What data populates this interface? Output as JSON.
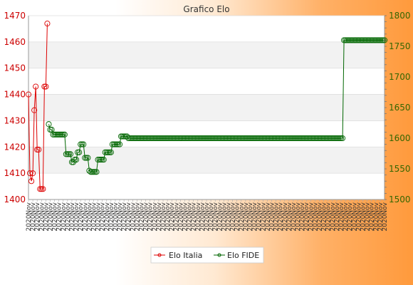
{
  "chart_data": {
    "type": "line",
    "title": "Grafico Elo",
    "colors": {
      "italia": "#dd0000",
      "fide": "#006600",
      "leftAxis": "#cc0000",
      "rightAxis": "#336600"
    },
    "y_left": {
      "lim": [
        1400,
        1470
      ],
      "ticks": [
        1400,
        1410,
        1420,
        1430,
        1440,
        1450,
        1460,
        1470
      ]
    },
    "y_right": {
      "lim": [
        1500,
        1800
      ],
      "ticks": [
        1500,
        1550,
        1600,
        1650,
        1700,
        1750,
        1800
      ]
    },
    "x_tick_text": "2020Nov",
    "series": [
      {
        "name": "Elo Italia",
        "axis": "left",
        "points": [
          [
            0,
            1440
          ],
          [
            1,
            1410
          ],
          [
            2,
            1407
          ],
          [
            3,
            1410
          ],
          [
            4,
            1434
          ],
          [
            5,
            1443
          ],
          [
            6,
            1419
          ],
          [
            7,
            1419
          ],
          [
            8,
            1404
          ],
          [
            9,
            1404
          ],
          [
            10,
            1404
          ],
          [
            11,
            1443
          ],
          [
            12,
            1443
          ],
          [
            13,
            1467
          ]
        ]
      },
      {
        "name": "Elo FIDE",
        "axis": "right",
        "points": [
          [
            14,
            1623
          ],
          [
            15,
            1614
          ],
          [
            16,
            1614
          ],
          [
            17,
            1606
          ],
          [
            18,
            1606
          ],
          [
            19,
            1606
          ],
          [
            20,
            1606
          ],
          [
            21,
            1606
          ],
          [
            22,
            1606
          ],
          [
            23,
            1606
          ],
          [
            24,
            1606
          ],
          [
            25,
            1606
          ],
          [
            26,
            1574
          ],
          [
            27,
            1574
          ],
          [
            28,
            1574
          ],
          [
            29,
            1574
          ],
          [
            30,
            1561
          ],
          [
            31,
            1561
          ],
          [
            32,
            1565
          ],
          [
            33,
            1565
          ],
          [
            34,
            1577
          ],
          [
            35,
            1577
          ],
          [
            36,
            1590
          ],
          [
            37,
            1590
          ],
          [
            38,
            1590
          ],
          [
            39,
            1568
          ],
          [
            40,
            1568
          ],
          [
            41,
            1568
          ],
          [
            42,
            1547
          ],
          [
            43,
            1545
          ],
          [
            44,
            1545
          ],
          [
            45,
            1545
          ],
          [
            46,
            1545
          ],
          [
            47,
            1545
          ],
          [
            48,
            1565
          ],
          [
            49,
            1565
          ],
          [
            50,
            1565
          ],
          [
            51,
            1565
          ],
          [
            52,
            1565
          ],
          [
            53,
            1577
          ],
          [
            54,
            1577
          ],
          [
            55,
            1577
          ],
          [
            56,
            1577
          ],
          [
            57,
            1577
          ],
          [
            58,
            1590
          ],
          [
            59,
            1590
          ],
          [
            60,
            1590
          ],
          [
            61,
            1590
          ],
          [
            62,
            1590
          ],
          [
            63,
            1590
          ],
          [
            64,
            1603
          ],
          [
            65,
            1603
          ],
          [
            66,
            1603
          ],
          [
            67,
            1603
          ],
          [
            68,
            1603
          ],
          [
            69,
            1600
          ],
          [
            70,
            1600
          ],
          [
            71,
            1600
          ],
          [
            72,
            1600
          ],
          [
            73,
            1600
          ],
          [
            74,
            1600
          ],
          [
            75,
            1600
          ],
          [
            76,
            1600
          ],
          [
            77,
            1600
          ],
          [
            78,
            1600
          ],
          [
            79,
            1600
          ],
          [
            80,
            1600
          ],
          [
            81,
            1600
          ],
          [
            82,
            1600
          ],
          [
            83,
            1600
          ],
          [
            84,
            1600
          ],
          [
            85,
            1600
          ],
          [
            86,
            1600
          ],
          [
            87,
            1600
          ],
          [
            88,
            1600
          ],
          [
            89,
            1600
          ],
          [
            90,
            1600
          ],
          [
            91,
            1600
          ],
          [
            92,
            1600
          ],
          [
            93,
            1600
          ],
          [
            94,
            1600
          ],
          [
            95,
            1600
          ],
          [
            96,
            1600
          ],
          [
            97,
            1600
          ],
          [
            98,
            1600
          ],
          [
            99,
            1600
          ],
          [
            100,
            1600
          ],
          [
            101,
            1600
          ],
          [
            102,
            1600
          ],
          [
            103,
            1600
          ],
          [
            104,
            1600
          ],
          [
            105,
            1600
          ],
          [
            106,
            1600
          ],
          [
            107,
            1600
          ],
          [
            108,
            1600
          ],
          [
            109,
            1600
          ],
          [
            110,
            1600
          ],
          [
            111,
            1600
          ],
          [
            112,
            1600
          ],
          [
            113,
            1600
          ],
          [
            114,
            1600
          ],
          [
            115,
            1600
          ],
          [
            116,
            1600
          ],
          [
            117,
            1600
          ],
          [
            118,
            1600
          ],
          [
            119,
            1600
          ],
          [
            120,
            1600
          ],
          [
            121,
            1600
          ],
          [
            122,
            1600
          ],
          [
            123,
            1600
          ],
          [
            124,
            1600
          ],
          [
            125,
            1600
          ],
          [
            126,
            1600
          ],
          [
            127,
            1600
          ],
          [
            128,
            1600
          ],
          [
            129,
            1600
          ],
          [
            130,
            1600
          ],
          [
            131,
            1600
          ],
          [
            132,
            1600
          ],
          [
            133,
            1600
          ],
          [
            134,
            1600
          ],
          [
            135,
            1600
          ],
          [
            136,
            1600
          ],
          [
            137,
            1600
          ],
          [
            138,
            1600
          ],
          [
            139,
            1600
          ],
          [
            140,
            1600
          ],
          [
            141,
            1600
          ],
          [
            142,
            1600
          ],
          [
            143,
            1600
          ],
          [
            144,
            1600
          ],
          [
            145,
            1600
          ],
          [
            146,
            1600
          ],
          [
            147,
            1600
          ],
          [
            148,
            1600
          ],
          [
            149,
            1600
          ],
          [
            150,
            1600
          ],
          [
            151,
            1600
          ],
          [
            152,
            1600
          ],
          [
            153,
            1600
          ],
          [
            154,
            1600
          ],
          [
            155,
            1600
          ],
          [
            156,
            1600
          ],
          [
            157,
            1600
          ],
          [
            158,
            1600
          ],
          [
            159,
            1600
          ],
          [
            160,
            1600
          ],
          [
            161,
            1600
          ],
          [
            162,
            1600
          ],
          [
            163,
            1600
          ],
          [
            164,
            1600
          ],
          [
            165,
            1600
          ],
          [
            166,
            1600
          ],
          [
            167,
            1600
          ],
          [
            168,
            1600
          ],
          [
            169,
            1600
          ],
          [
            170,
            1600
          ],
          [
            171,
            1600
          ],
          [
            172,
            1600
          ],
          [
            173,
            1600
          ],
          [
            174,
            1600
          ],
          [
            175,
            1600
          ],
          [
            176,
            1600
          ],
          [
            177,
            1600
          ],
          [
            178,
            1600
          ],
          [
            179,
            1600
          ],
          [
            180,
            1600
          ],
          [
            181,
            1600
          ],
          [
            182,
            1600
          ],
          [
            183,
            1600
          ],
          [
            184,
            1600
          ],
          [
            185,
            1600
          ],
          [
            186,
            1600
          ],
          [
            187,
            1600
          ],
          [
            188,
            1600
          ],
          [
            189,
            1600
          ],
          [
            190,
            1600
          ],
          [
            191,
            1600
          ],
          [
            192,
            1600
          ],
          [
            193,
            1600
          ],
          [
            194,
            1600
          ],
          [
            195,
            1600
          ],
          [
            196,
            1600
          ],
          [
            197,
            1600
          ],
          [
            198,
            1600
          ],
          [
            199,
            1600
          ],
          [
            200,
            1600
          ],
          [
            201,
            1600
          ],
          [
            202,
            1600
          ],
          [
            203,
            1600
          ],
          [
            204,
            1600
          ],
          [
            205,
            1600
          ],
          [
            206,
            1600
          ],
          [
            207,
            1600
          ],
          [
            208,
            1600
          ],
          [
            209,
            1600
          ],
          [
            210,
            1600
          ],
          [
            211,
            1600
          ],
          [
            212,
            1600
          ],
          [
            213,
            1600
          ],
          [
            214,
            1600
          ],
          [
            215,
            1600
          ],
          [
            216,
            1600
          ],
          [
            217,
            1600
          ],
          [
            218,
            1760
          ],
          [
            219,
            1760
          ],
          [
            220,
            1760
          ],
          [
            221,
            1760
          ],
          [
            222,
            1760
          ],
          [
            223,
            1760
          ],
          [
            224,
            1760
          ],
          [
            225,
            1760
          ],
          [
            226,
            1760
          ],
          [
            227,
            1760
          ],
          [
            228,
            1760
          ],
          [
            229,
            1760
          ],
          [
            230,
            1760
          ],
          [
            231,
            1760
          ],
          [
            232,
            1760
          ],
          [
            233,
            1760
          ],
          [
            234,
            1760
          ],
          [
            235,
            1760
          ],
          [
            236,
            1760
          ],
          [
            237,
            1760
          ],
          [
            238,
            1760
          ],
          [
            239,
            1760
          ],
          [
            240,
            1760
          ],
          [
            241,
            1760
          ],
          [
            242,
            1760
          ],
          [
            243,
            1760
          ],
          [
            244,
            1760
          ],
          [
            245,
            1760
          ],
          [
            246,
            1760
          ]
        ]
      }
    ],
    "legend": {
      "position": "bottom-center"
    }
  }
}
